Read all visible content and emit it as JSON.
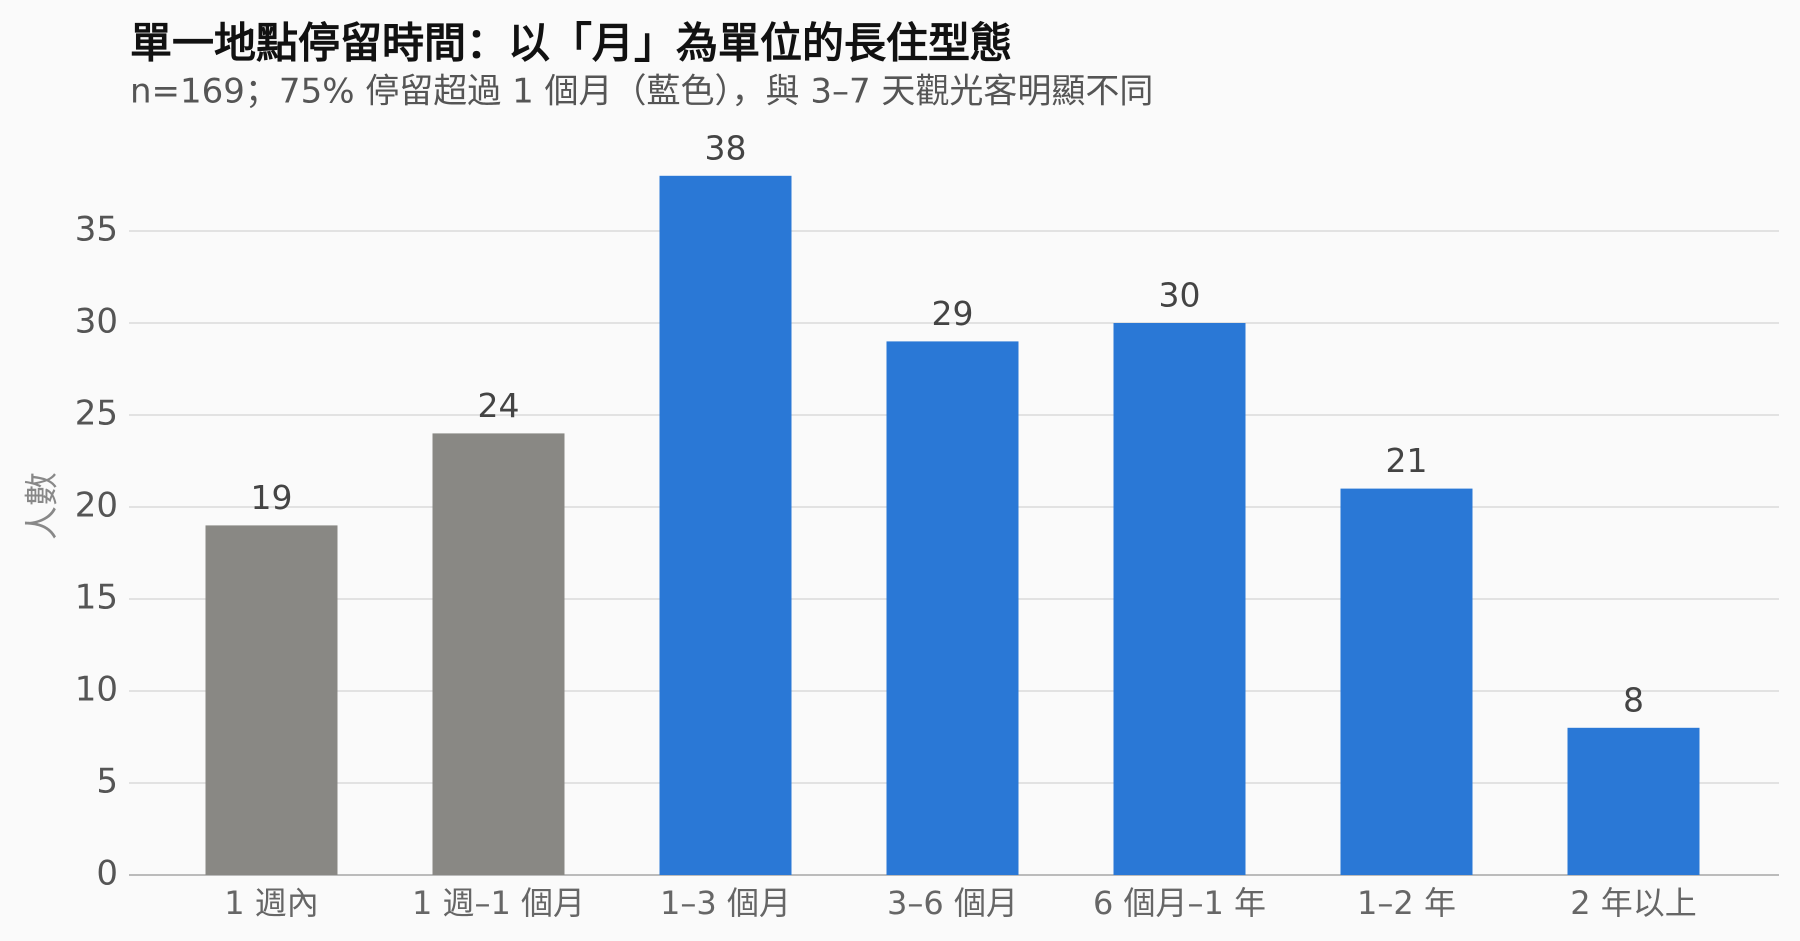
{
  "chart_data": {
    "type": "bar",
    "title": "單一地點停留時間：以「月」為單位的長住型態",
    "subtitle": "n=169；75% 停留超過 1 個月（藍色），與 3–7 天觀光客明顯不同",
    "y_label": "人數",
    "categories": [
      "1 週內",
      "1 週–1 個月",
      "1–3 個月",
      "3–6 個月",
      "6 個月–1 年",
      "1–2 年",
      "2 年以上"
    ],
    "values": [
      19,
      24,
      38,
      29,
      30,
      21,
      8
    ],
    "colors": [
      "#898884",
      "#898884",
      "#2a78d6",
      "#2a78d6",
      "#2a78d6",
      "#2a78d6",
      "#2a78d6"
    ],
    "ylim": [
      0,
      40
    ],
    "yticks": [
      0,
      5,
      10,
      15,
      20,
      25,
      30,
      35
    ],
    "grid": true
  }
}
